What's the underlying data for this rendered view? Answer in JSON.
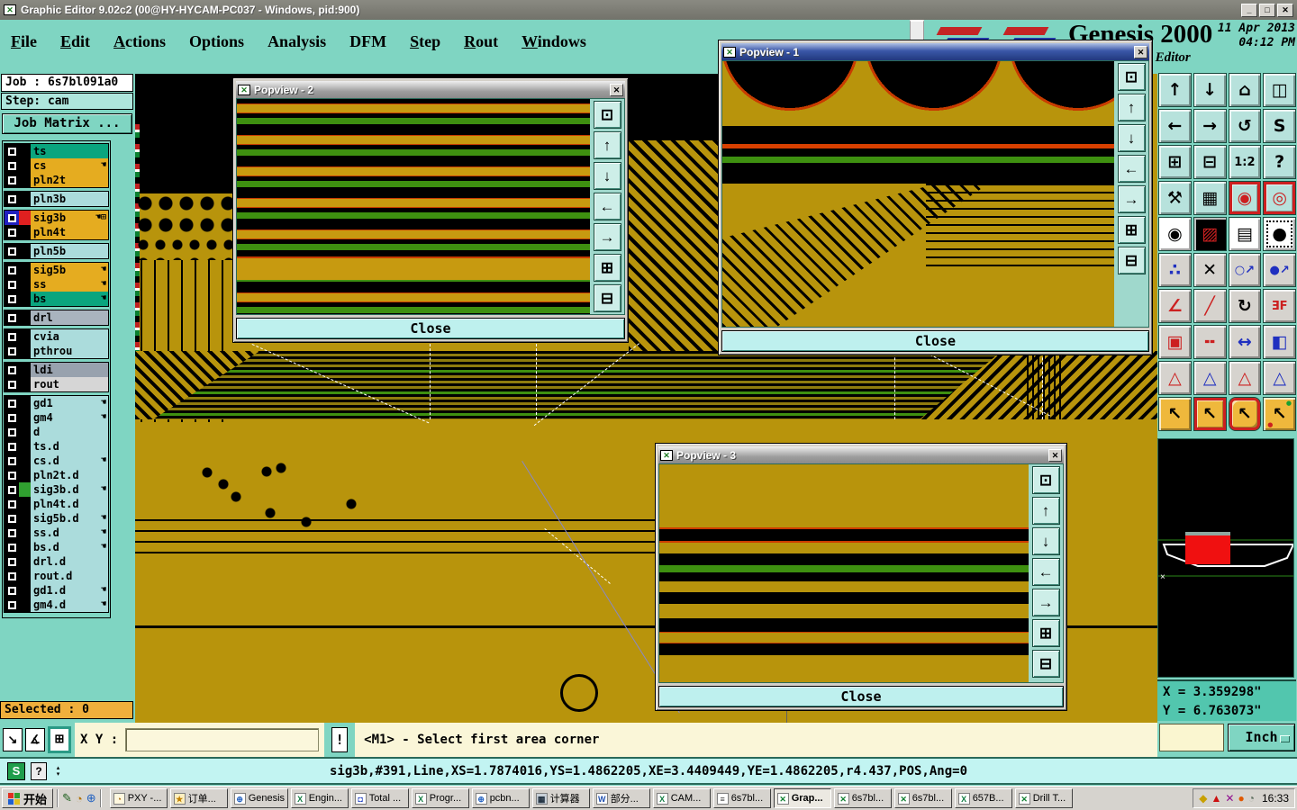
{
  "titlebar": {
    "title": "Graphic Editor 9.02c2 (00@HY-HYCAM-PC037 - Windows, pid:900)",
    "minimize": "_",
    "maximize": "□",
    "close": "✕"
  },
  "menus": [
    {
      "label": "File",
      "u": 0
    },
    {
      "label": "Edit",
      "u": 0
    },
    {
      "label": "Actions",
      "u": 0
    },
    {
      "label": "Options",
      "u": -1
    },
    {
      "label": "Analysis",
      "u": -1
    },
    {
      "label": "DFM",
      "u": -1
    },
    {
      "label": "Step",
      "u": 0
    },
    {
      "label": "Rout",
      "u": 0
    },
    {
      "label": "Windows",
      "u": 0
    }
  ],
  "brand": {
    "name": "Genesis 2000",
    "subtitle": "Graphic Editor",
    "date": "11 Apr 2013",
    "time": "04:12 PM"
  },
  "job": {
    "job": "Job : 6s7bl091a0",
    "step": "Step: cam",
    "matrix": "Job Matrix ..."
  },
  "selected": "Selected : 0",
  "layers": {
    "groups": [
      [
        {
          "n": "ts",
          "bg": "green"
        },
        {
          "n": "cs",
          "bg": "gold",
          "h": true
        },
        {
          "n": "pln2t",
          "bg": "gold"
        }
      ],
      [
        {
          "n": "pln3b",
          "bg": "cyan"
        }
      ],
      [
        {
          "n": "sig3b",
          "bg": "gold",
          "h": true,
          "g": true,
          "sw": "#E02020",
          "cb": true
        },
        {
          "n": "pln4t",
          "bg": "gold"
        }
      ],
      [
        {
          "n": "pln5b",
          "bg": "cyan"
        }
      ],
      [
        {
          "n": "sig5b",
          "bg": "gold",
          "h": true
        },
        {
          "n": "ss",
          "bg": "gold",
          "h": true
        },
        {
          "n": "bs",
          "bg": "green",
          "h": true
        }
      ],
      [
        {
          "n": "drl",
          "bg": "gray"
        }
      ],
      [
        {
          "n": "cvia",
          "bg": "cyan"
        },
        {
          "n": "pthrou",
          "bg": "cyan"
        }
      ],
      [
        {
          "n": "ldi",
          "bg": "ldi"
        },
        {
          "n": "rout",
          "bg": "rout"
        }
      ],
      [
        {
          "n": "gd1",
          "bg": "cyan",
          "h": true
        },
        {
          "n": "gm4",
          "bg": "cyan",
          "h": true
        },
        {
          "n": "d",
          "bg": "cyan"
        },
        {
          "n": "ts.d",
          "bg": "cyan"
        },
        {
          "n": "cs.d",
          "bg": "cyan",
          "h": true
        },
        {
          "n": "pln2t.d",
          "bg": "cyan"
        },
        {
          "n": "sig3b.d",
          "bg": "cyan",
          "h": true,
          "sw": "#30A030"
        },
        {
          "n": "pln4t.d",
          "bg": "cyan"
        },
        {
          "n": "sig5b.d",
          "bg": "cyan",
          "h": true
        },
        {
          "n": "ss.d",
          "bg": "cyan",
          "h": true
        },
        {
          "n": "bs.d",
          "bg": "cyan",
          "h": true
        },
        {
          "n": "drl.d",
          "bg": "cyan"
        },
        {
          "n": "rout.d",
          "bg": "cyan"
        },
        {
          "n": "gd1.d",
          "bg": "cyan",
          "h": true
        },
        {
          "n": "gm4.d",
          "bg": "cyan",
          "h": true
        }
      ]
    ],
    "hand_glyph": "☚",
    "grid_glyph": "⊞"
  },
  "popviews": {
    "p1": {
      "title": "Popview - 1",
      "close": "Close"
    },
    "p2": {
      "title": "Popview - 2",
      "close": "Close"
    },
    "p3": {
      "title": "Popview - 3",
      "close": "Close"
    }
  },
  "popview_rail": [
    {
      "name": "popout-button",
      "glyph": "⊡"
    },
    {
      "name": "pan-up-button",
      "glyph": "↑"
    },
    {
      "name": "pan-down-button",
      "glyph": "↓"
    },
    {
      "name": "pan-left-button",
      "glyph": "←"
    },
    {
      "name": "pan-right-button",
      "glyph": "→"
    },
    {
      "name": "zoom-in-button",
      "glyph": "⊞"
    },
    {
      "name": "zoom-out-button",
      "glyph": "⊟"
    }
  ],
  "toolbar": {
    "buttons": [
      {
        "name": "pan-up-button",
        "glyph": "↑",
        "bg": "#B7E2DC"
      },
      {
        "name": "pan-down-button",
        "glyph": "↓",
        "bg": "#B7E2DC"
      },
      {
        "name": "home-view-button",
        "glyph": "⌂",
        "bg": "#B7E2DC"
      },
      {
        "name": "window-xy-button",
        "glyph": "◫",
        "bg": "#B7E2DC"
      },
      {
        "name": "pan-left-button",
        "glyph": "←",
        "bg": "#B7E2DC"
      },
      {
        "name": "pan-right-button",
        "glyph": "→",
        "bg": "#B7E2DC"
      },
      {
        "name": "previous-view-button",
        "glyph": "↺",
        "bg": "#B7E2DC"
      },
      {
        "name": "serpentine-route-button",
        "glyph": "S",
        "bg": "#B7E2DC"
      },
      {
        "name": "zoom-in-button",
        "glyph": "⊞",
        "bg": "#B7E2DC"
      },
      {
        "name": "zoom-out-button",
        "glyph": "⊟",
        "bg": "#B7E2DC"
      },
      {
        "name": "zoom-ratio-button",
        "glyph": "1:2",
        "bg": "#B7E2DC",
        "cls": "small-text"
      },
      {
        "name": "help-button",
        "glyph": "?",
        "bg": "#B7E2DC"
      },
      {
        "name": "tools-button",
        "glyph": "⚒",
        "bg": "#B7E2DC"
      },
      {
        "name": "grid-button",
        "glyph": "▦",
        "bg": "#B7E2DC"
      },
      {
        "name": "net-view-a-button",
        "glyph": "◉",
        "bg": "#B7E2DC",
        "fg": "#CC2020",
        "cls": "frame-red"
      },
      {
        "name": "net-view-b-button",
        "glyph": "◎",
        "bg": "#B7E2DC",
        "fg": "#CC2020",
        "cls": "frame-red"
      },
      {
        "name": "select-dot-button",
        "glyph": "◉",
        "bg": "#FFFFFF"
      },
      {
        "name": "transform-button",
        "glyph": "▨",
        "bg": "#000000",
        "fg": "#CC2020"
      },
      {
        "name": "ruler-button",
        "glyph": "▤",
        "bg": "#FFFFFF"
      },
      {
        "name": "pad-select-button",
        "glyph": "●",
        "bg": "#FFFFFF",
        "cls": "dashed"
      },
      {
        "name": "net-points-button",
        "glyph": "∴",
        "bg": "#D6D3CE",
        "fg": "#2030C0"
      },
      {
        "name": "erase-button",
        "glyph": "✕",
        "bg": "#D6D3CE"
      },
      {
        "name": "copy-point-button",
        "glyph": "○↗",
        "bg": "#D6D3CE",
        "fg": "#2030C0",
        "cls": "small-text"
      },
      {
        "name": "move-point-button",
        "glyph": "●↗",
        "bg": "#D6D3CE",
        "fg": "#2030C0",
        "cls": "small-text"
      },
      {
        "name": "angle-measure-button",
        "glyph": "∠",
        "bg": "#D6D3CE",
        "fg": "#CC2020"
      },
      {
        "name": "line-angle-button",
        "glyph": "╱",
        "bg": "#D6D3CE",
        "fg": "#CC2020"
      },
      {
        "name": "rotate-button",
        "glyph": "↻",
        "bg": "#D6D3CE"
      },
      {
        "name": "mirror-button",
        "glyph": "ƎF",
        "bg": "#D6D3CE",
        "fg": "#CC2020",
        "cls": "small-text"
      },
      {
        "name": "copy-mask-button",
        "glyph": "▣",
        "bg": "#D6D3CE",
        "fg": "#CC2020"
      },
      {
        "name": "stretch-line-button",
        "glyph": "╍",
        "bg": "#D6D3CE",
        "fg": "#CC2020"
      },
      {
        "name": "measure-gap-button",
        "glyph": "↔",
        "bg": "#D6D3CE",
        "fg": "#2030C0"
      },
      {
        "name": "surface-button",
        "glyph": "◧",
        "bg": "#D6D3CE",
        "fg": "#2030C0"
      },
      {
        "name": "fillet-sharp-button",
        "glyph": "△",
        "bg": "#D6D3CE",
        "fg": "#CC2020"
      },
      {
        "name": "fillet-chevron-button",
        "glyph": "△",
        "bg": "#D6D3CE",
        "fg": "#2030C0"
      },
      {
        "name": "fillet-trap-button",
        "glyph": "△",
        "bg": "#D6D3CE",
        "fg": "#CC2020"
      },
      {
        "name": "fillet-base-button",
        "glyph": "△",
        "bg": "#D6D3CE",
        "fg": "#2030C0"
      },
      {
        "name": "select-cursor-button",
        "glyph": "↖",
        "bg": "#EFB83C"
      },
      {
        "name": "frame-select-button",
        "glyph": "↖",
        "bg": "#EFB83C",
        "cls": "frame-red"
      },
      {
        "name": "polygon-select-button",
        "glyph": "↖",
        "bg": "#EFB83C",
        "cls": "frame-red rounded"
      },
      {
        "name": "net-select-button",
        "glyph": "↖",
        "bg": "#EFB83C",
        "cls": "dots"
      }
    ]
  },
  "coords": {
    "x": "X = 3.359298\"",
    "y": "Y = 6.763073\"",
    "unit": "Inch"
  },
  "command_bar": {
    "resize_icon": "↘",
    "angle_icon": "∡",
    "grid_icon": "⊞",
    "xy_label": "X Y :",
    "xy_value": "",
    "bang": "!",
    "message": "<M1> - Select first area corner"
  },
  "status": {
    "s_icon": "S",
    "q_icon": "?",
    "feature_info": "sig3b,#391,Line,XS=1.7874016,YS=1.4862205,XE=3.4409449,YE=1.4862205,r4.437,POS,Ang=0"
  },
  "taskbar": {
    "start": "开始",
    "time": "16:33",
    "quick_launch": [
      {
        "name": "edit-doc-icon",
        "ch": "✎",
        "color": "#206020"
      },
      {
        "name": "scheduler-icon",
        "ch": "◔",
        "color": "#B07000"
      },
      {
        "name": "internet-icon",
        "ch": "⊕",
        "color": "#2060C0"
      }
    ],
    "icon_styles": {
      "clock": {
        "ch": "◔",
        "bg": "#FFF8E0",
        "fg": "#A06000"
      },
      "star": {
        "ch": "★",
        "bg": "#FFF0C0",
        "fg": "#C08000"
      },
      "globe": {
        "ch": "⊕",
        "bg": "#FFFFFF",
        "fg": "#2060C0"
      },
      "excel": {
        "ch": "X",
        "bg": "#FFFFFF",
        "fg": "#107C41"
      },
      "word": {
        "ch": "W",
        "bg": "#FFFFFF",
        "fg": "#2050B0"
      },
      "disk": {
        "ch": "◘",
        "bg": "#FFFFFF",
        "fg": "#2040C0"
      },
      "calc": {
        "ch": "▦",
        "bg": "#C8D0D8",
        "fg": "#203040"
      },
      "notepad": {
        "ch": "≡",
        "bg": "#FFFFFF",
        "fg": "#404040"
      },
      "genesis": {
        "ch": "✕",
        "bg": "#FFFFFF",
        "fg": "#108030"
      }
    },
    "buttons": [
      {
        "label": "PXY -...",
        "icon": "clock"
      },
      {
        "label": "订单...",
        "icon": "star"
      },
      {
        "label": "Genesis",
        "icon": "globe"
      },
      {
        "label": "Engin...",
        "icon": "excel"
      },
      {
        "label": "Total ...",
        "icon": "disk"
      },
      {
        "label": "Progr...",
        "icon": "excel"
      },
      {
        "label": "pcbn...",
        "icon": "globe"
      },
      {
        "label": "计算器",
        "icon": "calc"
      },
      {
        "label": "部分...",
        "icon": "word"
      },
      {
        "label": "CAM...",
        "icon": "excel"
      },
      {
        "label": "6s7bl...",
        "icon": "notepad"
      },
      {
        "label": "Grap...",
        "icon": "genesis",
        "active": true
      },
      {
        "label": "6s7bl...",
        "icon": "genesis"
      },
      {
        "label": "6s7bl...",
        "icon": "genesis"
      },
      {
        "label": "657B...",
        "icon": "excel"
      },
      {
        "label": "Drill T...",
        "icon": "genesis"
      }
    ],
    "tray": [
      {
        "name": "pen-tray-icon",
        "ch": "◆",
        "color": "#C8A000"
      },
      {
        "name": "alert-tray-icon",
        "ch": "▲",
        "color": "#CC1010"
      },
      {
        "name": "x-tray-icon",
        "ch": "✕",
        "color": "#901090"
      },
      {
        "name": "ink-tray-icon",
        "ch": "●",
        "color": "#E05800"
      },
      {
        "name": "clock-tray-icon",
        "ch": "◔",
        "color": "#607060"
      }
    ]
  }
}
